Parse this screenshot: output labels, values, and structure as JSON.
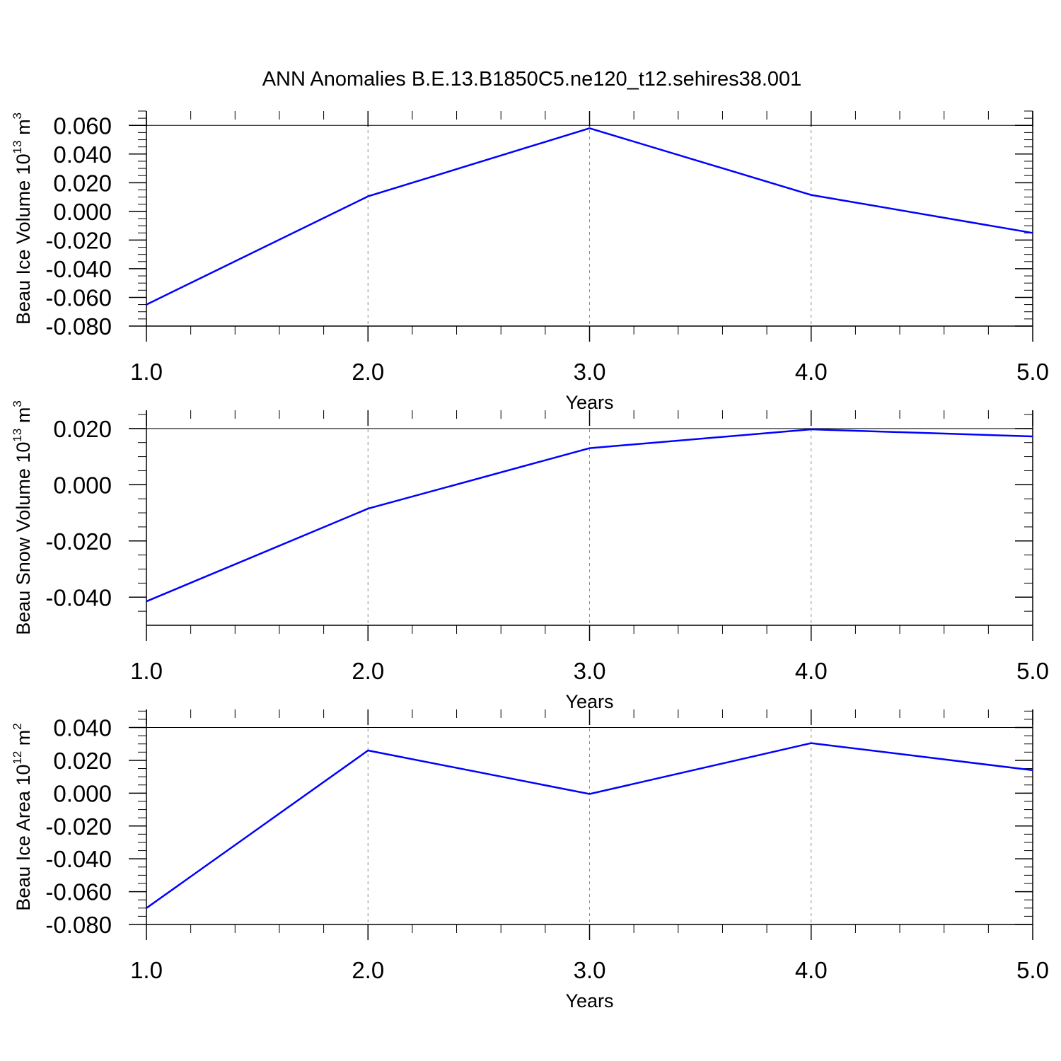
{
  "title": "ANN Anomalies B.E.13.B1850C5.ne120_t12.sehires38.001",
  "colors": {
    "line": "#0000ff",
    "axis": "#000000",
    "gridline": "#888888",
    "background": "#ffffff"
  },
  "chart_data": [
    {
      "type": "line",
      "title": "",
      "ylabel": {
        "text": "Beau Ice Volume 10",
        "exp1": "13",
        "mid": " m",
        "exp2": "3"
      },
      "xlabel": "Years",
      "x": [
        1.0,
        2.0,
        3.0,
        4.0,
        5.0
      ],
      "series": [
        {
          "values": [
            -0.065,
            0.0105,
            0.058,
            0.0115,
            -0.015
          ]
        }
      ],
      "xlim": [
        1.0,
        5.0
      ],
      "ylim": [
        -0.08,
        0.07
      ],
      "x_ticks": [
        "1.0",
        "2.0",
        "3.0",
        "4.0",
        "5.0"
      ],
      "y_ticks": [
        {
          "v": 0.06,
          "label": "0.060"
        },
        {
          "v": 0.04,
          "label": "0.040"
        },
        {
          "v": 0.02,
          "label": "0.020"
        },
        {
          "v": 0.0,
          "label": "0.000"
        },
        {
          "v": -0.02,
          "label": "-0.020"
        },
        {
          "v": -0.04,
          "label": "-0.040"
        },
        {
          "v": -0.06,
          "label": "-0.060"
        },
        {
          "v": -0.08,
          "label": "-0.080"
        }
      ],
      "y_minor_step": 0.005,
      "ref_line": 0.06,
      "grid": "vertical dashed at major x ticks"
    },
    {
      "type": "line",
      "title": "",
      "ylabel": {
        "text": "Beau Snow Volume 10",
        "exp1": "13",
        "mid": " m",
        "exp2": "3"
      },
      "xlabel": "Years",
      "x": [
        1.0,
        2.0,
        3.0,
        4.0,
        5.0
      ],
      "series": [
        {
          "values": [
            -0.0415,
            -0.0085,
            0.013,
            0.0197,
            0.0172
          ]
        }
      ],
      "xlim": [
        1.0,
        5.0
      ],
      "ylim": [
        -0.05,
        0.0265
      ],
      "x_ticks": [
        "1.0",
        "2.0",
        "3.0",
        "4.0",
        "5.0"
      ],
      "y_ticks": [
        {
          "v": 0.02,
          "label": "0.020"
        },
        {
          "v": 0.0,
          "label": "0.000"
        },
        {
          "v": -0.02,
          "label": "-0.020"
        },
        {
          "v": -0.04,
          "label": "-0.040"
        }
      ],
      "y_minor_step": 0.005,
      "ref_line": 0.02,
      "grid": "vertical dashed at major x ticks"
    },
    {
      "type": "line",
      "title": "",
      "ylabel": {
        "text": "Beau Ice Area 10",
        "exp1": "12",
        "mid": " m",
        "exp2": "2"
      },
      "xlabel": "Years",
      "x": [
        1.0,
        2.0,
        3.0,
        4.0,
        5.0
      ],
      "series": [
        {
          "values": [
            -0.07,
            0.026,
            -0.0005,
            0.0305,
            0.014
          ]
        }
      ],
      "xlim": [
        1.0,
        5.0
      ],
      "ylim": [
        -0.08,
        0.051
      ],
      "x_ticks": [
        "1.0",
        "2.0",
        "3.0",
        "4.0",
        "5.0"
      ],
      "y_ticks": [
        {
          "v": 0.04,
          "label": "0.040"
        },
        {
          "v": 0.02,
          "label": "0.020"
        },
        {
          "v": 0.0,
          "label": "0.000"
        },
        {
          "v": -0.02,
          "label": "-0.020"
        },
        {
          "v": -0.04,
          "label": "-0.040"
        },
        {
          "v": -0.06,
          "label": "-0.060"
        },
        {
          "v": -0.08,
          "label": "-0.080"
        }
      ],
      "y_minor_step": 0.005,
      "ref_line": 0.04,
      "grid": "vertical dashed at major x ticks"
    }
  ]
}
